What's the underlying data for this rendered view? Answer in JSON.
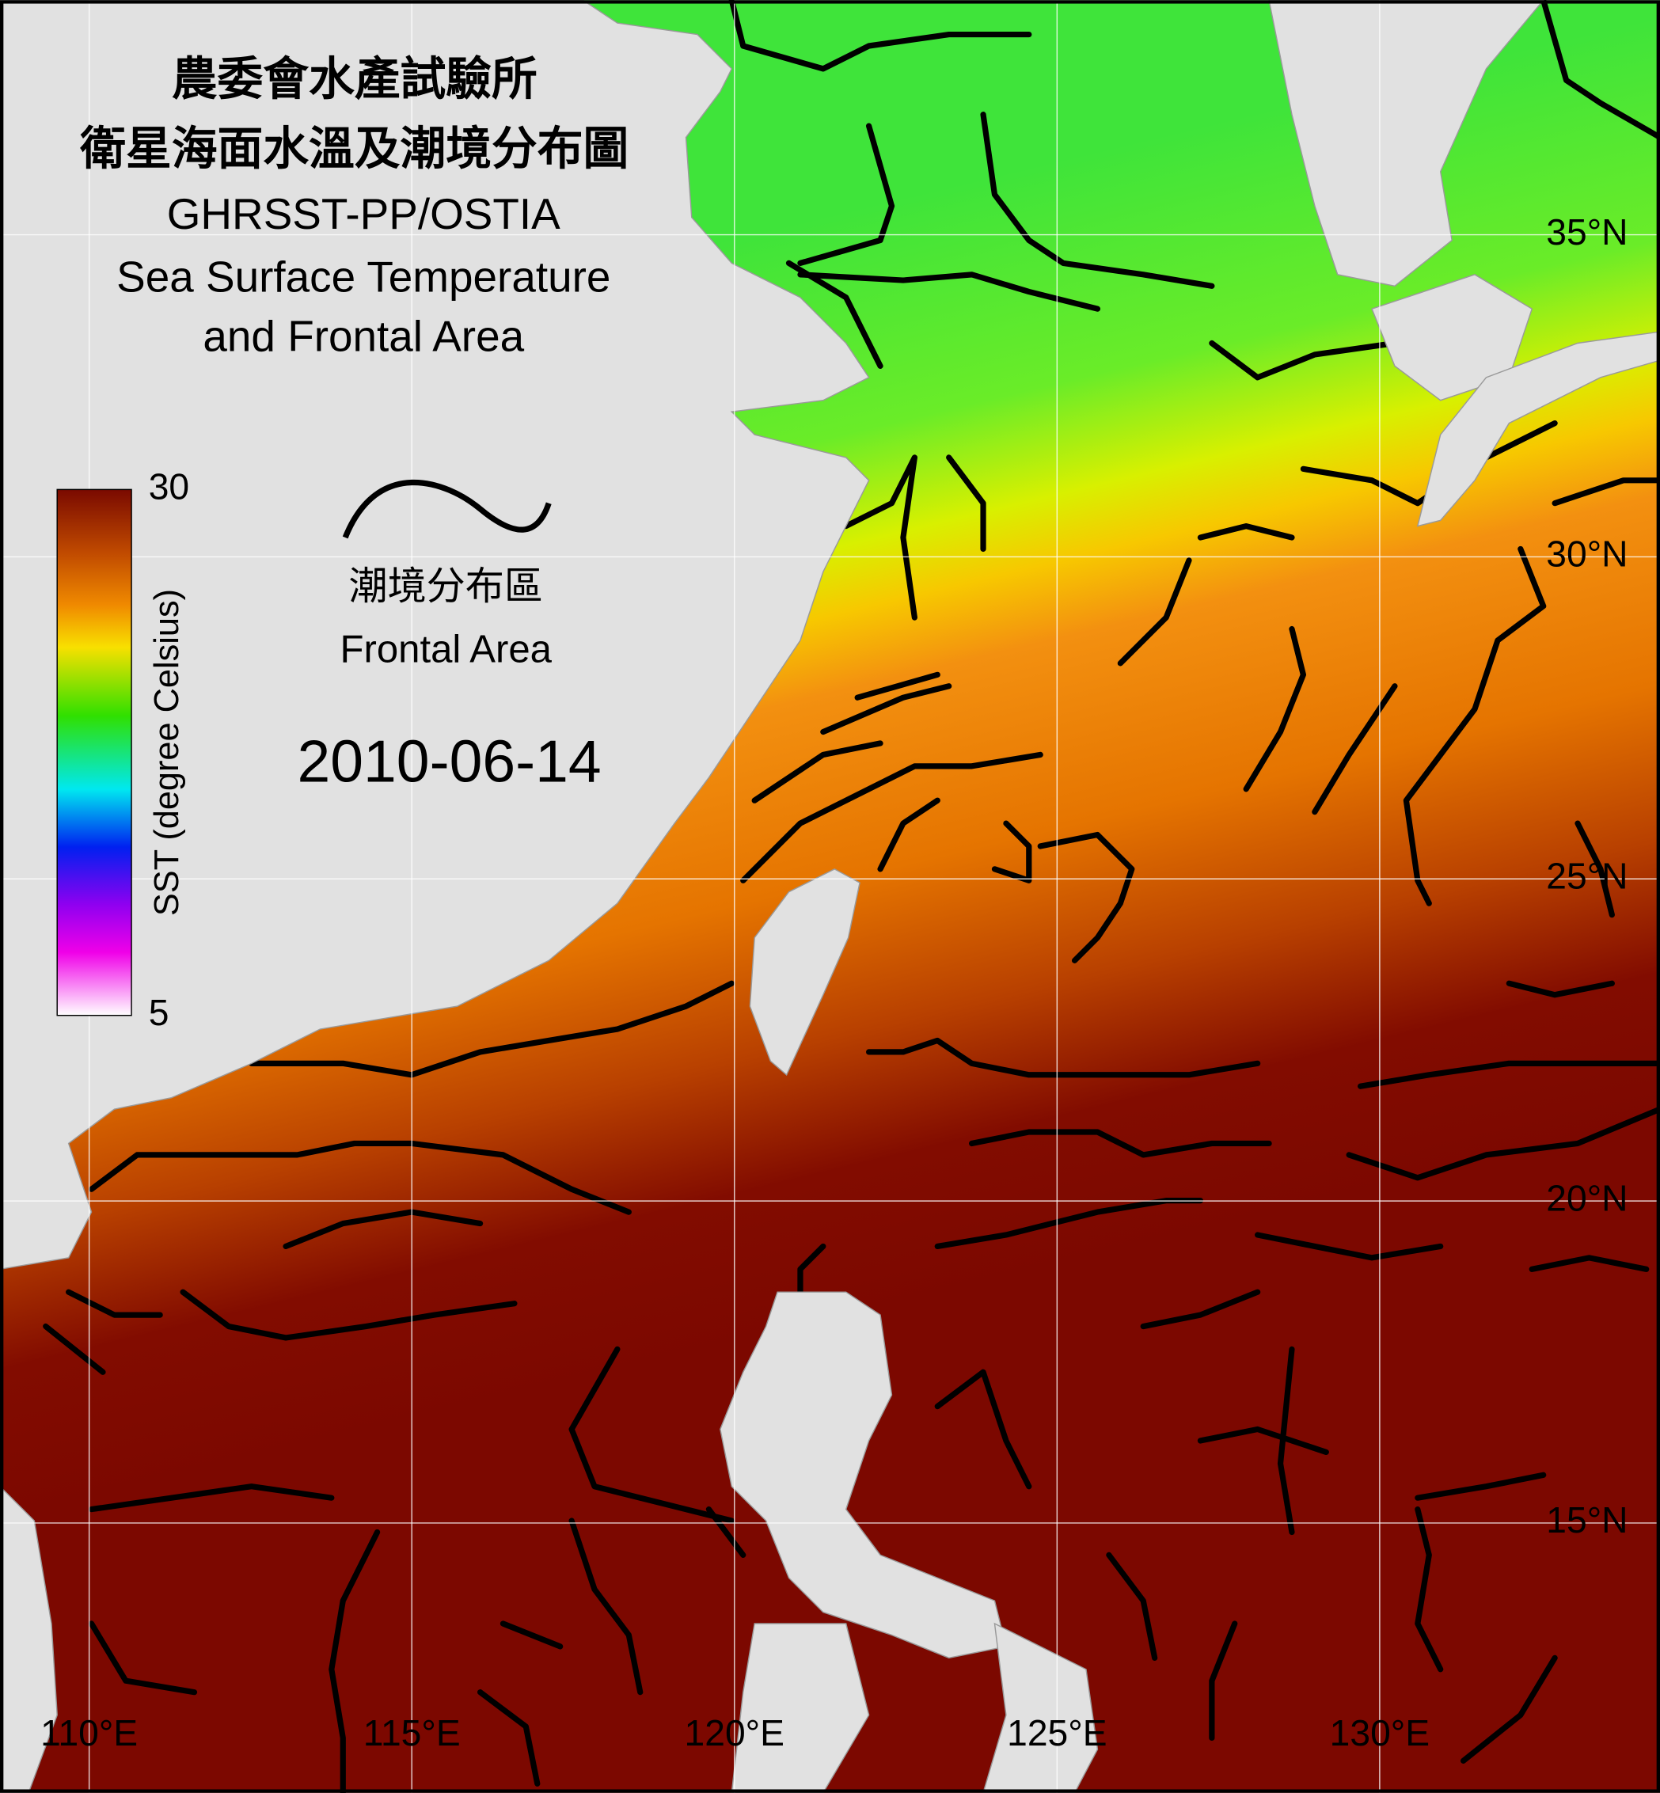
{
  "title_lines": [
    "農委會水產試驗所",
    "衛星海面水溫及潮境分布圖",
    "GHRSST-PP/OSTIA",
    "Sea Surface Temperature",
    "and Frontal Area"
  ],
  "colorbar": {
    "label": "SST (degree Celsius)",
    "min": 5,
    "max": 30
  },
  "legend": {
    "label_zh": "潮境分布區",
    "label_en": "Frontal Area"
  },
  "date": "2010-06-14",
  "lat_ticks": [
    {
      "value": 35,
      "label": "35°N"
    },
    {
      "value": 30,
      "label": "30°N"
    },
    {
      "value": 25,
      "label": "25°N"
    },
    {
      "value": 20,
      "label": "20°N"
    },
    {
      "value": 15,
      "label": "15°N"
    }
  ],
  "lon_ticks": [
    {
      "value": 110,
      "label": "110°E"
    },
    {
      "value": 115,
      "label": "115°E"
    },
    {
      "value": 120,
      "label": "120°E"
    },
    {
      "value": 125,
      "label": "125°E"
    },
    {
      "value": 130,
      "label": "130°E"
    }
  ]
}
